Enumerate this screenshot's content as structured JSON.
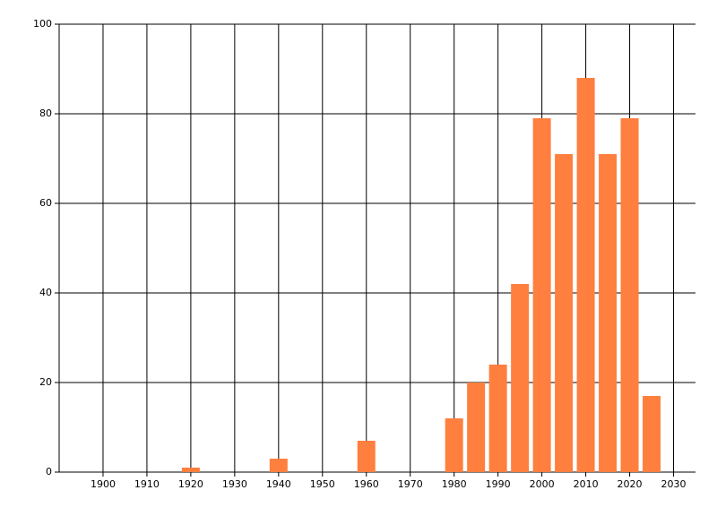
{
  "chart_data": {
    "type": "bar",
    "x": [
      1920,
      1940,
      1960,
      1980,
      1985,
      1990,
      1995,
      2000,
      2005,
      2010,
      2015,
      2020,
      2025
    ],
    "values": [
      1,
      3,
      7,
      12,
      20,
      24,
      42,
      79,
      71,
      88,
      71,
      79,
      17
    ],
    "color": "#ff7f3f",
    "xlim": [
      1890,
      2035
    ],
    "xticks": [
      1900,
      1910,
      1920,
      1930,
      1940,
      1950,
      1960,
      1970,
      1980,
      1990,
      2000,
      2010,
      2020,
      2030
    ],
    "ylim": [
      0,
      100
    ],
    "yticks": [
      0,
      20,
      40,
      60,
      80,
      100
    ],
    "grid": true
  }
}
